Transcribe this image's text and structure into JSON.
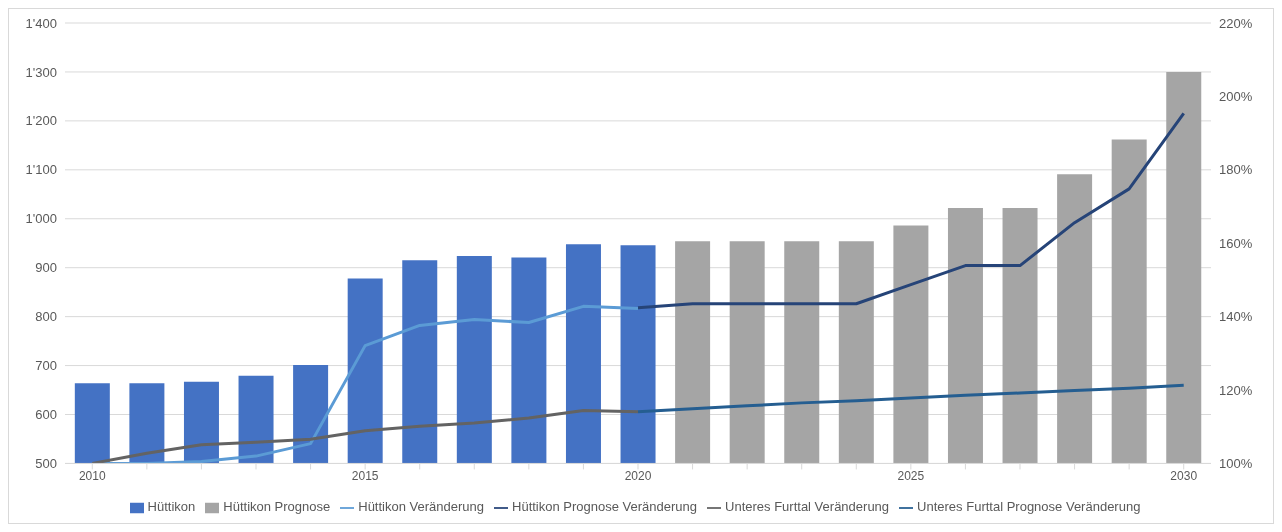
{
  "chart_data": {
    "type": "bar",
    "categories": [
      "2010",
      null,
      null,
      null,
      null,
      "2015",
      null,
      null,
      null,
      null,
      "2020",
      null,
      null,
      null,
      null,
      "2025",
      null,
      null,
      null,
      null,
      "2030"
    ],
    "series": [
      {
        "name": "Hüttikon",
        "color": "#4472c4",
        "values": [
          664,
          664,
          667,
          679,
          701,
          878,
          915,
          924,
          921,
          948,
          946,
          null,
          null,
          null,
          null,
          null,
          null,
          null,
          null,
          null,
          null
        ]
      },
      {
        "name": "Hüttikon Prognose",
        "color": "#a5a5a5",
        "values": [
          null,
          null,
          null,
          null,
          null,
          null,
          null,
          null,
          null,
          null,
          null,
          954,
          954,
          954,
          954,
          986,
          1022,
          1022,
          1091,
          1162,
          1300
        ]
      },
      {
        "name": "Hüttikon Veränderung",
        "type": "line",
        "axis": "y2",
        "color": "#5b9bd5",
        "values": [
          100,
          100,
          100.5,
          102,
          105.4,
          132.1,
          137.6,
          139.2,
          138.4,
          142.8,
          142.2,
          null,
          null,
          null,
          null,
          null,
          null,
          null,
          null,
          null,
          null
        ]
      },
      {
        "name": "Hüttikon Prognose Veränderung",
        "type": "line",
        "axis": "y2",
        "color": "#264478",
        "values": [
          null,
          null,
          null,
          null,
          null,
          null,
          null,
          null,
          null,
          null,
          142.4,
          143.5,
          143.5,
          143.5,
          143.5,
          148.7,
          153.9,
          153.9,
          165.6,
          174.8,
          195.4
        ]
      },
      {
        "name": "Unteres Furttal Veränderung",
        "type": "line",
        "axis": "y2",
        "color": "#636363",
        "values": [
          100,
          102.8,
          105.1,
          105.8,
          106.6,
          108.9,
          110.1,
          111,
          112.4,
          114.4,
          114.1,
          null,
          null,
          null,
          null,
          null,
          null,
          null,
          null,
          null,
          null
        ]
      },
      {
        "name": "Unteres Furttal Prognose Veränderung",
        "type": "line",
        "axis": "y2",
        "color": "#255e91",
        "values": [
          null,
          null,
          null,
          null,
          null,
          null,
          null,
          null,
          null,
          null,
          114.1,
          114.9,
          115.7,
          116.5,
          117.1,
          117.8,
          118.6,
          119.2,
          119.9,
          120.5,
          121.3
        ]
      }
    ],
    "ylim": [
      500,
      1400
    ],
    "yticks": [
      {
        "value": 500,
        "label": "500"
      },
      {
        "value": 600,
        "label": "600"
      },
      {
        "value": 700,
        "label": "700"
      },
      {
        "value": 800,
        "label": "800"
      },
      {
        "value": 900,
        "label": "900"
      },
      {
        "value": 1000,
        "label": "1'000"
      },
      {
        "value": 1100,
        "label": "1'100"
      },
      {
        "value": 1200,
        "label": "1'200"
      },
      {
        "value": 1300,
        "label": "1'300"
      },
      {
        "value": 1400,
        "label": "1'400"
      }
    ],
    "y2lim": [
      100,
      220
    ],
    "y2ticks": [
      {
        "value": 100,
        "label": "100%"
      },
      {
        "value": 120,
        "label": "120%"
      },
      {
        "value": 140,
        "label": "140%"
      },
      {
        "value": 160,
        "label": "160%"
      },
      {
        "value": 180,
        "label": "180%"
      },
      {
        "value": 200,
        "label": "200%"
      },
      {
        "value": 220,
        "label": "220%"
      }
    ],
    "grid": "y",
    "legend": "bottom",
    "marker": "none",
    "line_style": "solid"
  }
}
